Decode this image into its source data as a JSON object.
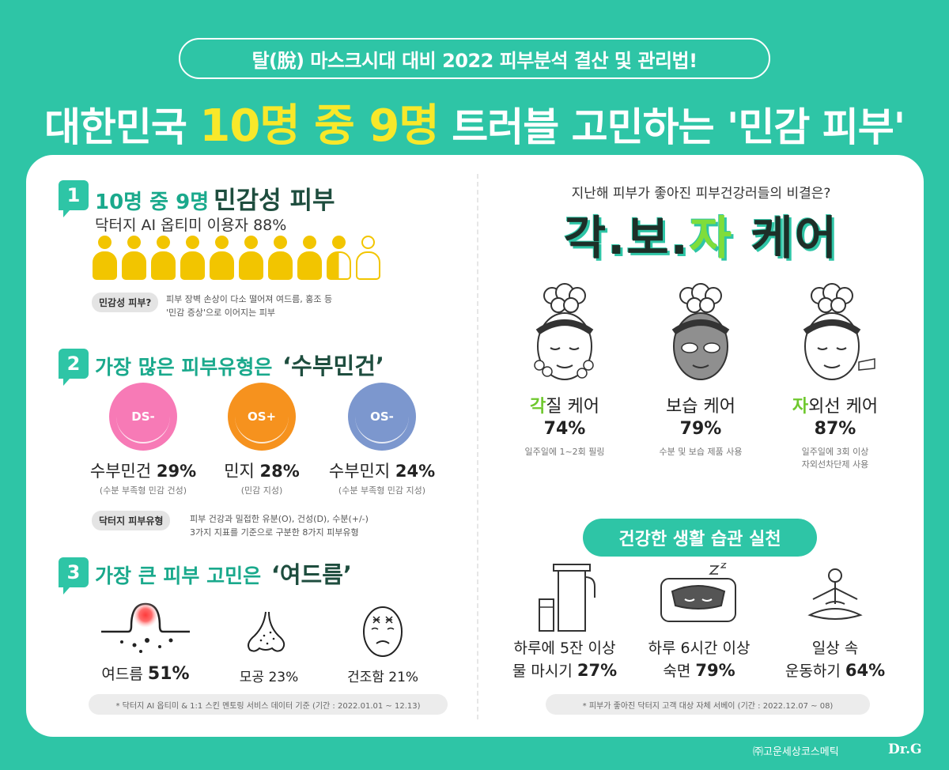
{
  "header": {
    "pill": "탈(脫) 마스크시대 대비 2022 피부분석 결산 및 관리법!",
    "headline_pre": "대한민국 ",
    "headline_hl": "10명 중 9명",
    "headline_post": " 트러블 고민하는 '민감 피부'"
  },
  "s1": {
    "num": "1",
    "title": "10명 중 9명",
    "title_big": "민감성 피부",
    "subtitle": "닥터지 AI 옵티미 이용자 88%",
    "percent_filled": 88,
    "note_label": "민감성 피부?",
    "note_line1": "피부 장벽 손상이 다소 떨어져 여드름, 홍조 등",
    "note_line2": "'민감 증상'으로 이어지는 피부"
  },
  "s2": {
    "num": "2",
    "title": "가장 많은 피부유형은",
    "title_big": "‘수부민건’",
    "types": [
      {
        "code": "DS-",
        "name": "수부민건",
        "pct": "29%",
        "desc": "(수분 부족형 민감 건성)",
        "color": "#f77ab6"
      },
      {
        "code": "OS+",
        "name": "민지",
        "pct": "28%",
        "desc": "(민감 지성)",
        "color": "#f6921e"
      },
      {
        "code": "OS-",
        "name": "수부민지",
        "pct": "24%",
        "desc": "(수분 부족형 민감 지성)",
        "color": "#7c97ce"
      }
    ],
    "note_label": "닥터지 피부유형",
    "note_line1": "피부 건강과 밀접한 유분(O), 건성(D), 수분(+/-)",
    "note_line2": "3가지 지표를 기준으로 구분한 8가지 피부유형"
  },
  "s3": {
    "num": "3",
    "title": "가장 큰 피부 고민은",
    "title_big": "‘여드름’",
    "items": [
      {
        "name": "여드름",
        "pct": "51%",
        "icon": "acne-icon"
      },
      {
        "name": "모공",
        "pct": "23%",
        "icon": "nose-pore-icon"
      },
      {
        "name": "건조함",
        "pct": "21%",
        "icon": "dry-face-icon"
      }
    ],
    "footnote": "* 닥터지 AI 옵티미 & 1:1 스킨 멘토링 서비스 데이터 기준 (기간 : 2022.01.01 ~ 12.13)"
  },
  "right": {
    "question": "지난해 피부가 좋아진 피부건강러들의 비결은?",
    "kbj": [
      "각",
      ".",
      "보",
      ".",
      "자",
      " 케어"
    ],
    "cares": [
      {
        "hl": "각",
        "rest": "질 케어",
        "pct": "74%",
        "desc1": "일주일에 1~2회 필링",
        "desc2": "",
        "icon": "peeling-face-icon"
      },
      {
        "hl": "",
        "rest": "보습 케어",
        "pct": "79%",
        "desc1": "수분 및 보습 제품 사용",
        "desc2": "",
        "icon": "mask-face-icon"
      },
      {
        "hl": "자",
        "rest": "외선 케어",
        "pct": "87%",
        "desc1": "일주일에 3회 이상",
        "desc2": "자외선차단제 사용",
        "icon": "sunscreen-face-icon"
      }
    ],
    "habit_title": "건강한 생활 습관 실천",
    "habits": [
      {
        "line1": "하루에 5잔 이상",
        "line2a": "물 마시기 ",
        "pct": "27%",
        "icon": "water-bottle-icon"
      },
      {
        "line1": "하루 6시간 이상",
        "line2a": "숙면 ",
        "pct": "79%",
        "icon": "sleep-icon"
      },
      {
        "line1": "일상 속",
        "line2a": "운동하기 ",
        "pct": "64%",
        "icon": "yoga-icon"
      }
    ],
    "footnote": "* 피부가 좋아진 닥터지 고객 대상 자체 서베이 (기간 : 2022.12.07 ~ 08)"
  },
  "brand": {
    "company": "㈜고운세상코스메틱",
    "logo": "Dr.G"
  }
}
